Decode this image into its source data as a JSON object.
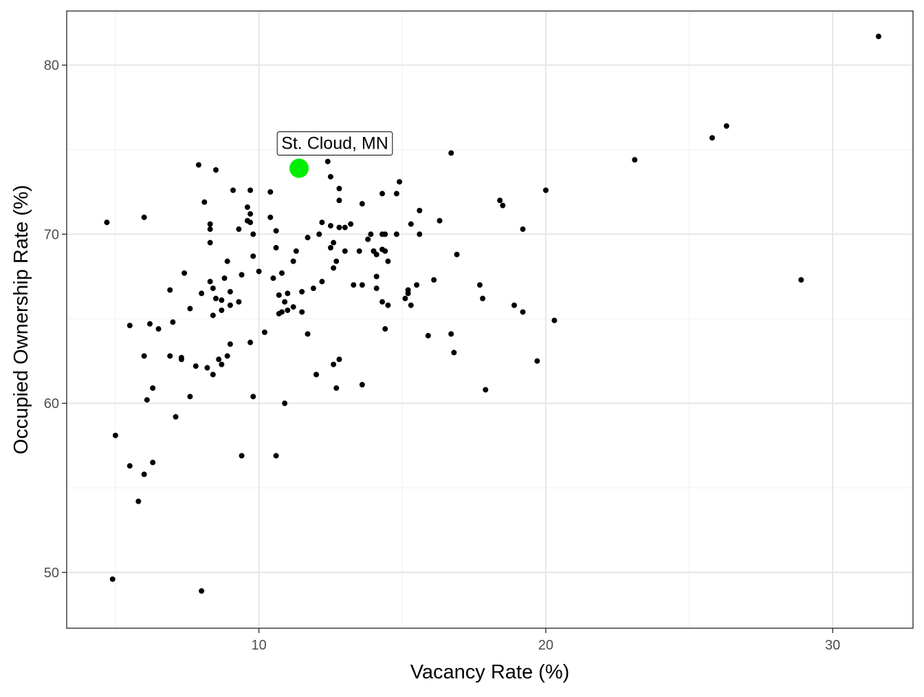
{
  "chart_data": {
    "type": "scatter",
    "title": "",
    "xlabel": "Vacancy Rate (%)",
    "ylabel": "Occupied Ownership Rate (%)",
    "xlim": [
      3.3,
      32.8
    ],
    "ylim": [
      46.7,
      83.2
    ],
    "x_ticks": [
      10,
      20,
      30
    ],
    "y_ticks": [
      50,
      60,
      70,
      80
    ],
    "x_minor": [
      5,
      15,
      25
    ],
    "y_minor": [
      55,
      65,
      75
    ],
    "grid": true,
    "point_color": "#000000",
    "highlight": {
      "label": "St. Cloud, MN",
      "x": 11.4,
      "y": 73.9,
      "color": "#00ee00"
    },
    "points": [
      [
        4.7,
        70.7
      ],
      [
        5.0,
        58.1
      ],
      [
        4.9,
        49.6
      ],
      [
        5.5,
        56.3
      ],
      [
        5.5,
        64.6
      ],
      [
        5.8,
        54.2
      ],
      [
        6.0,
        62.8
      ],
      [
        6.0,
        55.8
      ],
      [
        6.0,
        71.0
      ],
      [
        6.1,
        60.2
      ],
      [
        6.2,
        64.7
      ],
      [
        6.3,
        56.5
      ],
      [
        6.3,
        60.9
      ],
      [
        6.5,
        64.4
      ],
      [
        6.9,
        66.7
      ],
      [
        6.9,
        62.8
      ],
      [
        7.0,
        64.8
      ],
      [
        7.1,
        59.2
      ],
      [
        7.3,
        62.6
      ],
      [
        7.3,
        62.7
      ],
      [
        7.4,
        67.7
      ],
      [
        7.6,
        65.6
      ],
      [
        7.6,
        60.4
      ],
      [
        7.8,
        62.2
      ],
      [
        7.9,
        74.1
      ],
      [
        8.0,
        66.5
      ],
      [
        8.1,
        71.9
      ],
      [
        8.2,
        62.1
      ],
      [
        8.3,
        67.2
      ],
      [
        8.3,
        70.3
      ],
      [
        8.3,
        70.6
      ],
      [
        8.3,
        69.5
      ],
      [
        8.4,
        65.2
      ],
      [
        8.4,
        61.7
      ],
      [
        8.4,
        66.8
      ],
      [
        8.5,
        73.8
      ],
      [
        8.5,
        66.2
      ],
      [
        8.6,
        62.6
      ],
      [
        8.7,
        62.3
      ],
      [
        8.7,
        66.1
      ],
      [
        8.7,
        65.5
      ],
      [
        8.8,
        67.4
      ],
      [
        8.9,
        62.8
      ],
      [
        8.9,
        68.4
      ],
      [
        9.0,
        65.8
      ],
      [
        9.0,
        63.5
      ],
      [
        9.0,
        66.6
      ],
      [
        9.1,
        72.6
      ],
      [
        9.3,
        70.3
      ],
      [
        9.3,
        66.0
      ],
      [
        9.4,
        56.9
      ],
      [
        9.4,
        67.6
      ],
      [
        9.6,
        71.6
      ],
      [
        9.6,
        70.8
      ],
      [
        9.7,
        72.6
      ],
      [
        9.7,
        71.2
      ],
      [
        9.7,
        70.7
      ],
      [
        9.7,
        63.6
      ],
      [
        9.8,
        70.0
      ],
      [
        9.8,
        68.7
      ],
      [
        9.8,
        60.4
      ],
      [
        10.0,
        67.8
      ],
      [
        10.2,
        64.2
      ],
      [
        10.4,
        71.0
      ],
      [
        10.4,
        72.5
      ],
      [
        10.5,
        67.4
      ],
      [
        10.6,
        69.2
      ],
      [
        10.6,
        56.9
      ],
      [
        10.6,
        70.2
      ],
      [
        10.7,
        66.4
      ],
      [
        10.7,
        65.3
      ],
      [
        10.8,
        67.7
      ],
      [
        10.8,
        65.4
      ],
      [
        10.9,
        66.0
      ],
      [
        10.9,
        60.0
      ],
      [
        11.0,
        65.5
      ],
      [
        11.0,
        66.5
      ],
      [
        11.2,
        65.7
      ],
      [
        11.2,
        68.4
      ],
      [
        11.3,
        69.0
      ],
      [
        11.5,
        66.6
      ],
      [
        11.5,
        65.4
      ],
      [
        11.7,
        64.1
      ],
      [
        11.7,
        69.8
      ],
      [
        11.9,
        66.8
      ],
      [
        12.0,
        61.7
      ],
      [
        12.1,
        70.0
      ],
      [
        12.2,
        67.2
      ],
      [
        12.2,
        70.7
      ],
      [
        12.4,
        74.3
      ],
      [
        12.5,
        73.4
      ],
      [
        12.5,
        70.5
      ],
      [
        12.5,
        69.2
      ],
      [
        12.6,
        68.0
      ],
      [
        12.6,
        69.5
      ],
      [
        12.6,
        62.3
      ],
      [
        12.7,
        68.4
      ],
      [
        12.7,
        60.9
      ],
      [
        12.8,
        72.7
      ],
      [
        12.8,
        62.6
      ],
      [
        12.8,
        72.0
      ],
      [
        12.8,
        70.4
      ],
      [
        13.0,
        69.0
      ],
      [
        13.0,
        70.4
      ],
      [
        13.2,
        70.6
      ],
      [
        13.3,
        67.0
      ],
      [
        13.5,
        69.0
      ],
      [
        13.6,
        71.8
      ],
      [
        13.6,
        67.0
      ],
      [
        13.6,
        61.1
      ],
      [
        13.8,
        69.7
      ],
      [
        13.9,
        70.0
      ],
      [
        14.0,
        69.0
      ],
      [
        14.0,
        69.0
      ],
      [
        14.1,
        66.8
      ],
      [
        14.1,
        67.5
      ],
      [
        14.1,
        68.8
      ],
      [
        14.3,
        66.0
      ],
      [
        14.3,
        69.1
      ],
      [
        14.3,
        70.0
      ],
      [
        14.3,
        72.4
      ],
      [
        14.4,
        64.4
      ],
      [
        14.4,
        70.0
      ],
      [
        14.4,
        69.0
      ],
      [
        14.5,
        68.4
      ],
      [
        14.5,
        65.8
      ],
      [
        14.8,
        70.0
      ],
      [
        14.8,
        72.4
      ],
      [
        14.9,
        73.1
      ],
      [
        15.1,
        66.2
      ],
      [
        15.2,
        66.5
      ],
      [
        15.2,
        66.7
      ],
      [
        15.3,
        70.6
      ],
      [
        15.3,
        65.8
      ],
      [
        15.5,
        67.0
      ],
      [
        15.6,
        71.4
      ],
      [
        15.6,
        70.0
      ],
      [
        15.9,
        64.0
      ],
      [
        16.1,
        67.3
      ],
      [
        16.3,
        70.8
      ],
      [
        16.7,
        74.8
      ],
      [
        16.7,
        64.1
      ],
      [
        16.8,
        63.0
      ],
      [
        16.9,
        68.8
      ],
      [
        17.7,
        67.0
      ],
      [
        17.8,
        66.2
      ],
      [
        17.9,
        60.8
      ],
      [
        18.4,
        72.0
      ],
      [
        18.5,
        71.7
      ],
      [
        18.9,
        65.8
      ],
      [
        19.2,
        65.4
      ],
      [
        19.2,
        70.3
      ],
      [
        19.7,
        62.5
      ],
      [
        20.0,
        72.6
      ],
      [
        20.3,
        64.9
      ],
      [
        23.1,
        74.4
      ],
      [
        25.8,
        75.7
      ],
      [
        26.3,
        76.4
      ],
      [
        28.9,
        67.3
      ],
      [
        31.6,
        81.7
      ],
      [
        8.0,
        48.9
      ]
    ]
  }
}
